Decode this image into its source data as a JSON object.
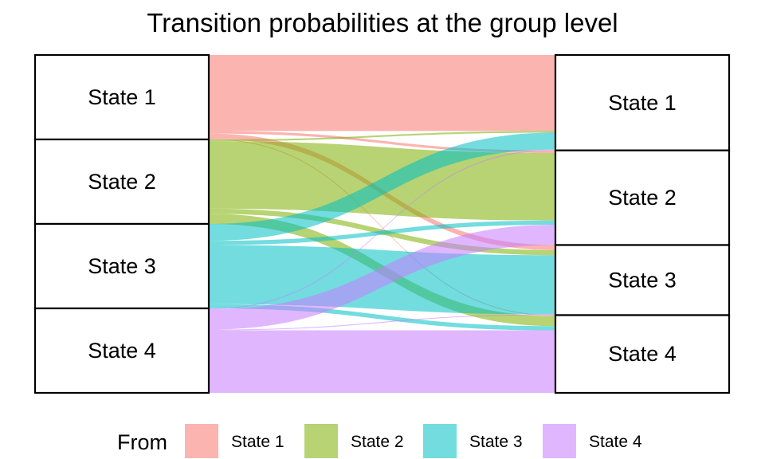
{
  "chart_data": {
    "type": "alluvial",
    "title": "Transition probabilities at the group level",
    "states": [
      "State 1",
      "State 2",
      "State 3",
      "State 4"
    ],
    "colors": [
      "#F8766D",
      "#7CAE00",
      "#00BFC4",
      "#C77CFF"
    ],
    "node_fill": "#FFFFFF",
    "node_stroke": "#000000",
    "flow_opacity": 0.55,
    "legend": {
      "title": "From",
      "position": "bottom",
      "labels": [
        "State 1",
        "State 2",
        "State 3",
        "State 4"
      ]
    },
    "flows": [
      [
        0.9,
        0.03,
        0.06,
        0.01
      ],
      [
        0.02,
        0.8,
        0.06,
        0.12
      ],
      [
        0.2,
        0.05,
        0.7,
        0.05
      ],
      [
        0.01,
        0.24,
        0.01,
        0.74
      ]
    ]
  }
}
